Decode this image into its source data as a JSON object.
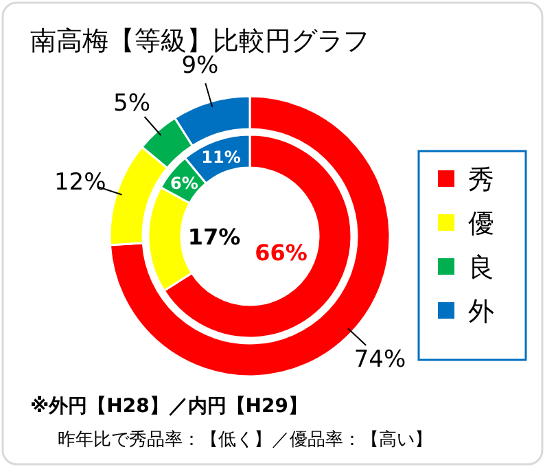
{
  "chart_data": {
    "type": "donut",
    "title": "南高梅【等級】比較円グラフ",
    "categories": [
      "秀",
      "優",
      "良",
      "外"
    ],
    "colors": [
      "#ff0000",
      "#ffff00",
      "#00b050",
      "#0070c0"
    ],
    "series": [
      {
        "values": [
          74,
          12,
          5,
          9
        ],
        "value_labels": [
          "74%",
          "12%",
          "5%",
          "9%"
        ]
      },
      {
        "values": [
          66,
          17,
          6,
          11
        ],
        "value_labels": [
          "66%",
          "17%",
          "6%",
          "11%"
        ]
      }
    ],
    "legend": "right",
    "annotations": [
      "※外円【H28】／内円【H29】",
      "昨年比で秀品率：【低く】／優品率：【高い】"
    ]
  }
}
